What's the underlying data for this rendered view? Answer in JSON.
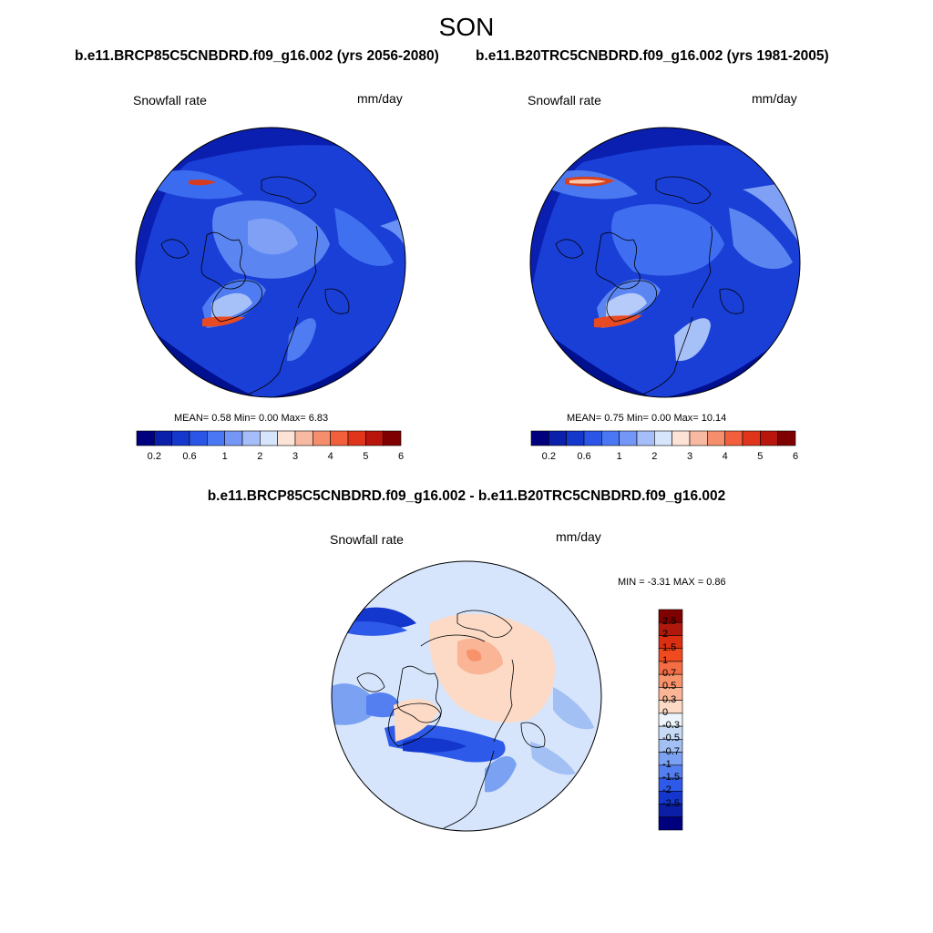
{
  "figure": {
    "season": "SON",
    "variable": "Snowfall rate",
    "units": "mm/day"
  },
  "panels": [
    {
      "title": "b.e11.BRCP85C5CNBDRD.f09_g16.002 (yrs 2056-2080)",
      "variable": "Snowfall rate",
      "units": "mm/day",
      "stats": {
        "mean_label": "MEAN=",
        "mean": "0.58",
        "min_label": "Min=",
        "min": "0.00",
        "max_label": "Max=",
        "max": "6.83"
      }
    },
    {
      "title": "b.e11.B20TRC5CNBDRD.f09_g16.002 (yrs 1981-2005)",
      "variable": "Snowfall rate",
      "units": "mm/day",
      "stats": {
        "mean_label": "MEAN=",
        "mean": "0.75",
        "min_label": "Min=",
        "min": "0.00",
        "max_label": "Max=",
        "max": "10.14"
      }
    }
  ],
  "diff": {
    "title": "b.e11.BRCP85C5CNBDRD.f09_g16.002 - b.e11.B20TRC5CNBDRD.f09_g16.002",
    "variable": "Snowfall rate",
    "units": "mm/day",
    "minmax_label": "MIN =  -3.31 MAX =   0.86"
  },
  "colorbar_abs": {
    "colors": [
      "#00007f",
      "#0a1faa",
      "#1437cc",
      "#2a55e6",
      "#4a78f5",
      "#7497f7",
      "#a5bdf8",
      "#d6e5fc",
      "#fde3d6",
      "#f7b9a1",
      "#f58e6c",
      "#f25f3c",
      "#e0351b",
      "#b8160c",
      "#7f0000"
    ],
    "labels": [
      "0.2",
      "0.6",
      "1",
      "2",
      "3",
      "4",
      "5",
      "6"
    ]
  },
  "colorbar_diff": {
    "colors": [
      "#7f0000",
      "#b0180b",
      "#da2f10",
      "#f04a1f",
      "#f46d45",
      "#f7926b",
      "#f9b595",
      "#fcdac6",
      "#edf4fc",
      "#c7dbf7",
      "#a3c0f5",
      "#7ba2f2",
      "#547ff0",
      "#2d5ae9",
      "#1336cc",
      "#0a1ea6",
      "#00007f"
    ],
    "labels": [
      "2.5",
      "2",
      "1.5",
      "1",
      "0.7",
      "0.5",
      "0.3",
      "0",
      "-0.3",
      "-0.5",
      "-0.7",
      "-1",
      "-1.5",
      "-2",
      "-2.5"
    ]
  },
  "chart_data": [
    {
      "type": "heatmap",
      "title": "b.e11.BRCP85C5CNBDRD.f09_g16.002 (yrs 2056-2080)",
      "variable": "Snowfall rate",
      "units": "mm/day",
      "projection": "north polar stereographic",
      "levels": [
        0.2,
        0.4,
        0.6,
        0.8,
        1,
        1.5,
        2,
        2.5,
        3,
        3.5,
        4,
        4.5,
        5,
        5.5,
        6
      ],
      "tick_labels": [
        "0.2",
        "0.6",
        "1",
        "2",
        "3",
        "4",
        "5",
        "6"
      ],
      "mean": 0.58,
      "min": 0.0,
      "max": 6.83
    },
    {
      "type": "heatmap",
      "title": "b.e11.B20TRC5CNBDRD.f09_g16.002 (yrs 1981-2005)",
      "variable": "Snowfall rate",
      "units": "mm/day",
      "projection": "north polar stereographic",
      "levels": [
        0.2,
        0.4,
        0.6,
        0.8,
        1,
        1.5,
        2,
        2.5,
        3,
        3.5,
        4,
        4.5,
        5,
        5.5,
        6
      ],
      "tick_labels": [
        "0.2",
        "0.6",
        "1",
        "2",
        "3",
        "4",
        "5",
        "6"
      ],
      "mean": 0.75,
      "min": 0.0,
      "max": 10.14
    },
    {
      "type": "heatmap",
      "title": "b.e11.BRCP85C5CNBDRD.f09_g16.002 - b.e11.B20TRC5CNBDRD.f09_g16.002",
      "variable": "Snowfall rate",
      "units": "mm/day",
      "projection": "north polar stereographic",
      "levels": [
        -2.5,
        -2,
        -1.5,
        -1,
        -0.7,
        -0.5,
        -0.3,
        0,
        0.3,
        0.5,
        0.7,
        1,
        1.5,
        2,
        2.5
      ],
      "min": -3.31,
      "max": 0.86
    }
  ]
}
